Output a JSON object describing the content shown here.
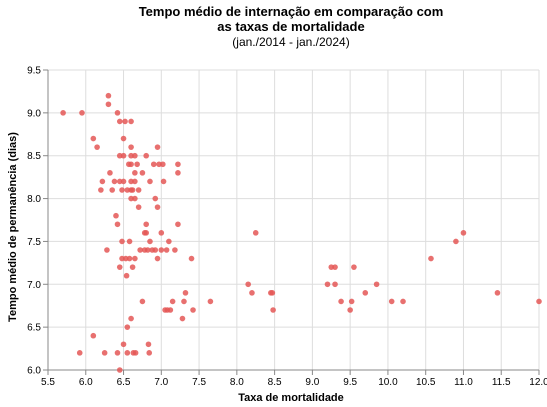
{
  "chart_data": {
    "type": "scatter",
    "title_lines": [
      "Tempo médio de internação em comparação com",
      "as taxas de mortalidade"
    ],
    "subtitle": "(jan./2014 - jan./2024)",
    "xlabel": "Taxa de mortalidade",
    "ylabel": "Tempo médio de permanência (dias)",
    "xlim": [
      5.5,
      12.0
    ],
    "ylim": [
      6.0,
      9.5
    ],
    "x_ticks": [
      "5.5",
      "6.0",
      "6.5",
      "7.0",
      "7.5",
      "8.0",
      "8.5",
      "9.0",
      "9.5",
      "10.0",
      "10.5",
      "11.0",
      "11.5",
      "12.0"
    ],
    "y_ticks": [
      "6.0",
      "6.5",
      "7.0",
      "7.5",
      "8.0",
      "8.5",
      "9.0",
      "9.5"
    ],
    "grid": true,
    "point_color": "#e45756",
    "points": [
      [
        5.7,
        9.0
      ],
      [
        5.95,
        9.0
      ],
      [
        5.92,
        6.2
      ],
      [
        6.1,
        8.7
      ],
      [
        6.15,
        8.6
      ],
      [
        6.1,
        6.4
      ],
      [
        6.2,
        8.1
      ],
      [
        6.22,
        8.2
      ],
      [
        6.25,
        6.2
      ],
      [
        6.28,
        7.4
      ],
      [
        6.3,
        9.2
      ],
      [
        6.3,
        9.1
      ],
      [
        6.32,
        8.3
      ],
      [
        6.35,
        8.1
      ],
      [
        6.38,
        8.2
      ],
      [
        6.4,
        7.8
      ],
      [
        6.42,
        7.7
      ],
      [
        6.42,
        6.2
      ],
      [
        6.42,
        9.0
      ],
      [
        6.45,
        8.9
      ],
      [
        6.45,
        8.5
      ],
      [
        6.45,
        8.2
      ],
      [
        6.45,
        7.2
      ],
      [
        6.45,
        6.0
      ],
      [
        6.48,
        8.1
      ],
      [
        6.48,
        7.5
      ],
      [
        6.48,
        7.3
      ],
      [
        6.5,
        8.7
      ],
      [
        6.5,
        8.5
      ],
      [
        6.5,
        8.2
      ],
      [
        6.5,
        6.3
      ],
      [
        6.52,
        8.9
      ],
      [
        6.53,
        7.3
      ],
      [
        6.54,
        7.1
      ],
      [
        6.55,
        8.1
      ],
      [
        6.55,
        6.5
      ],
      [
        6.55,
        6.2
      ],
      [
        6.57,
        8.4
      ],
      [
        6.58,
        7.5
      ],
      [
        6.58,
        7.3
      ],
      [
        6.6,
        8.9
      ],
      [
        6.6,
        8.6
      ],
      [
        6.6,
        8.5
      ],
      [
        6.6,
        8.4
      ],
      [
        6.6,
        8.2
      ],
      [
        6.6,
        8.1
      ],
      [
        6.6,
        8.0
      ],
      [
        6.6,
        6.6
      ],
      [
        6.62,
        8.1
      ],
      [
        6.62,
        7.2
      ],
      [
        6.63,
        6.2
      ],
      [
        6.65,
        8.5
      ],
      [
        6.65,
        8.3
      ],
      [
        6.65,
        8.2
      ],
      [
        6.65,
        8.0
      ],
      [
        6.65,
        7.3
      ],
      [
        6.66,
        6.2
      ],
      [
        6.68,
        8.4
      ],
      [
        6.7,
        8.1
      ],
      [
        6.7,
        7.9
      ],
      [
        6.72,
        7.4
      ],
      [
        6.75,
        6.8
      ],
      [
        6.75,
        8.3
      ],
      [
        6.78,
        7.6
      ],
      [
        6.78,
        7.4
      ],
      [
        6.8,
        8.5
      ],
      [
        6.8,
        7.7
      ],
      [
        6.8,
        7.6
      ],
      [
        6.82,
        7.4
      ],
      [
        6.83,
        6.3
      ],
      [
        6.84,
        6.2
      ],
      [
        6.85,
        8.2
      ],
      [
        6.85,
        7.5
      ],
      [
        6.88,
        7.4
      ],
      [
        6.9,
        8.4
      ],
      [
        6.92,
        8.0
      ],
      [
        6.92,
        7.4
      ],
      [
        6.95,
        8.6
      ],
      [
        6.95,
        7.9
      ],
      [
        6.95,
        7.3
      ],
      [
        6.97,
        8.4
      ],
      [
        7.0,
        7.6
      ],
      [
        7.0,
        7.4
      ],
      [
        7.02,
        8.4
      ],
      [
        7.03,
        8.2
      ],
      [
        7.05,
        6.7
      ],
      [
        7.07,
        7.4
      ],
      [
        7.08,
        6.7
      ],
      [
        7.1,
        7.5
      ],
      [
        7.12,
        6.7
      ],
      [
        7.15,
        6.8
      ],
      [
        7.18,
        7.4
      ],
      [
        7.22,
        8.4
      ],
      [
        7.22,
        8.3
      ],
      [
        7.22,
        7.7
      ],
      [
        7.28,
        6.6
      ],
      [
        7.3,
        6.8
      ],
      [
        7.32,
        6.9
      ],
      [
        7.4,
        7.3
      ],
      [
        7.42,
        6.7
      ],
      [
        7.65,
        6.8
      ],
      [
        8.15,
        7.0
      ],
      [
        8.2,
        6.9
      ],
      [
        8.25,
        7.6
      ],
      [
        8.45,
        6.9
      ],
      [
        8.47,
        6.9
      ],
      [
        8.48,
        6.7
      ],
      [
        9.2,
        7.0
      ],
      [
        9.25,
        7.2
      ],
      [
        9.3,
        7.2
      ],
      [
        9.3,
        7.0
      ],
      [
        9.38,
        6.8
      ],
      [
        9.5,
        6.7
      ],
      [
        9.52,
        6.8
      ],
      [
        9.55,
        7.2
      ],
      [
        9.7,
        6.9
      ],
      [
        9.85,
        7.0
      ],
      [
        10.05,
        6.8
      ],
      [
        10.2,
        6.8
      ],
      [
        10.57,
        7.3
      ],
      [
        10.9,
        7.5
      ],
      [
        11.0,
        7.6
      ],
      [
        11.45,
        6.9
      ],
      [
        12.0,
        6.8
      ]
    ]
  }
}
